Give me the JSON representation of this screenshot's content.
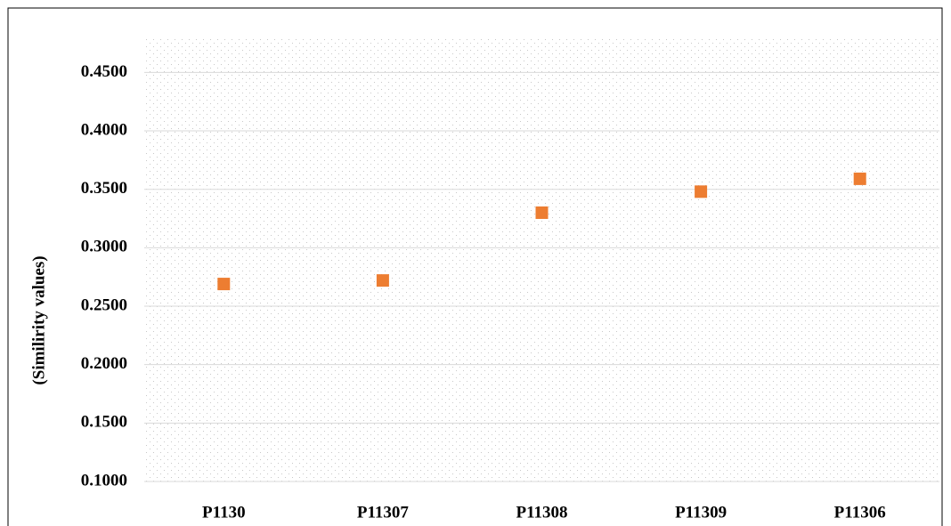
{
  "chart_data": {
    "type": "scatter",
    "y_label": "(Similirity values)",
    "categories": [
      "P1130",
      "P11307",
      "P11308",
      "P11309",
      "P11306"
    ],
    "values": [
      0.269,
      0.272,
      0.33,
      0.348,
      0.359
    ],
    "color": "#ed7d31",
    "ylim": [
      0.1,
      0.48
    ],
    "yticks": [
      {
        "value": 0.1,
        "label": "0.1000"
      },
      {
        "value": 0.15,
        "label": "0.1500"
      },
      {
        "value": 0.2,
        "label": "0.2000"
      },
      {
        "value": 0.25,
        "label": "0.2500"
      },
      {
        "value": 0.3,
        "label": "0.3000"
      },
      {
        "value": 0.35,
        "label": "0.3500"
      },
      {
        "value": 0.4,
        "label": "0.4000"
      },
      {
        "value": 0.45,
        "label": "0.4500"
      }
    ],
    "grid": true
  }
}
